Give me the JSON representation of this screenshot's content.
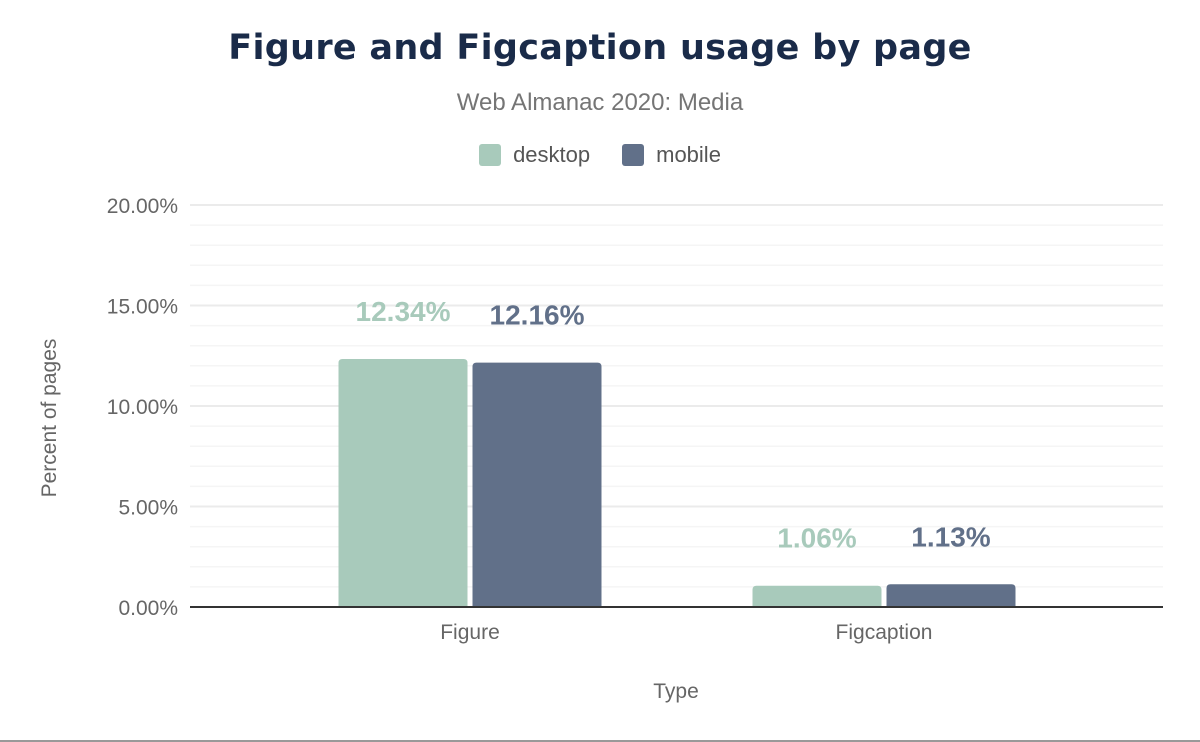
{
  "chart_data": {
    "type": "bar",
    "title": "Figure and Figcaption usage by page",
    "subtitle": "Web Almanac 2020: Media",
    "xlabel": "Type",
    "ylabel": "Percent of pages",
    "categories": [
      "Figure",
      "Figcaption"
    ],
    "series": [
      {
        "name": "desktop",
        "color": "#a8cabb",
        "values": [
          12.34,
          1.06
        ],
        "labels": [
          "12.34%",
          "1.06%"
        ]
      },
      {
        "name": "mobile",
        "color": "#617089",
        "values": [
          12.16,
          1.13
        ],
        "labels": [
          "12.16%",
          "1.13%"
        ]
      }
    ],
    "ylim": [
      0,
      20
    ],
    "yticks": [
      0,
      5,
      10,
      15,
      20
    ],
    "ytick_labels": [
      "0.00%",
      "5.00%",
      "10.00%",
      "15.00%",
      "20.00%"
    ],
    "grid": true,
    "minor_grid_step": 1,
    "legend": "top-center"
  }
}
